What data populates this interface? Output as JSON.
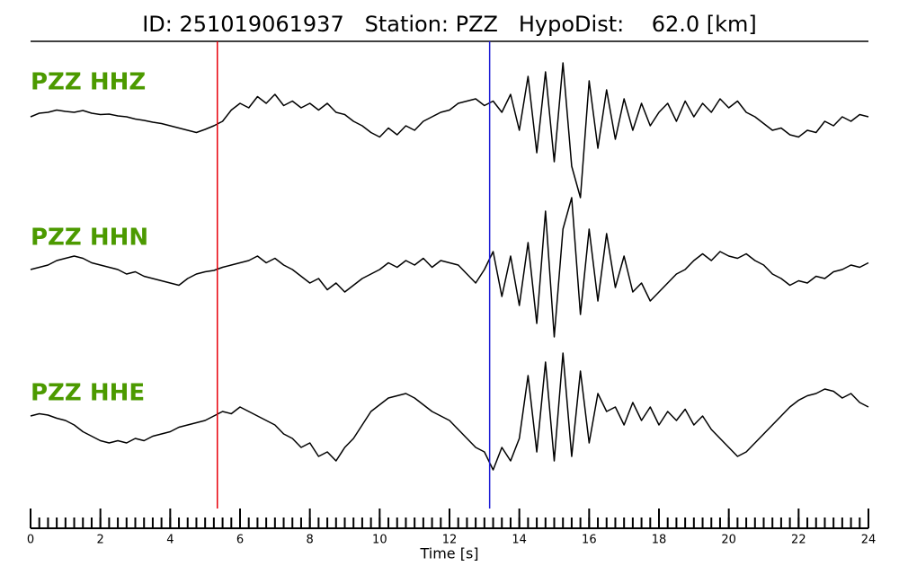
{
  "chart_data": {
    "type": "seismogram",
    "title": "ID: 251019061937   Station: PZZ   HypoDist:    62.0 [km]",
    "xlabel": "Time [s]",
    "xlim": [
      0,
      24
    ],
    "xticks": [
      0,
      2,
      4,
      6,
      8,
      10,
      12,
      14,
      16,
      18,
      20,
      22,
      24
    ],
    "xminor_ticks": [
      0,
      0.25,
      0.5,
      0.75,
      1,
      1.25,
      1.5,
      1.75,
      2,
      2.25,
      2.5,
      2.75,
      3,
      3.25,
      3.5,
      3.75,
      4,
      4.25,
      4.5,
      4.75,
      5,
      5.25,
      5.5,
      5.75,
      6,
      6.25,
      6.5,
      6.75,
      7,
      7.25,
      7.5,
      7.75,
      8,
      8.25,
      8.5,
      8.75,
      9,
      9.25,
      9.5,
      9.75,
      10,
      10.25,
      10.5,
      10.75,
      11,
      11.25,
      11.5,
      11.75,
      12,
      12.25,
      12.5,
      12.75,
      13,
      13.25,
      13.5,
      13.75,
      14,
      14.25,
      14.5,
      14.75,
      15,
      15.25,
      15.5,
      15.75,
      16,
      16.25,
      16.5,
      16.75,
      17,
      17.25,
      17.5,
      17.75,
      18,
      18.25,
      18.5,
      18.75,
      19,
      19.25,
      19.5,
      19.75,
      20,
      20.25,
      20.5,
      20.75,
      21,
      21.25,
      21.5,
      21.75,
      22,
      22.25,
      22.5,
      22.75,
      23,
      23.25,
      23.5,
      23.75,
      24
    ],
    "x": [
      0,
      0.25,
      0.5,
      0.75,
      1,
      1.25,
      1.5,
      1.75,
      2,
      2.25,
      2.5,
      2.75,
      3,
      3.25,
      3.5,
      3.75,
      4,
      4.25,
      4.5,
      4.75,
      5,
      5.25,
      5.5,
      5.75,
      6,
      6.25,
      6.5,
      6.75,
      7,
      7.25,
      7.5,
      7.75,
      8,
      8.25,
      8.5,
      8.75,
      9,
      9.25,
      9.5,
      9.75,
      10,
      10.25,
      10.5,
      10.75,
      11,
      11.25,
      11.5,
      11.75,
      12,
      12.25,
      12.5,
      12.75,
      13,
      13.25,
      13.5,
      13.75,
      14,
      14.25,
      14.5,
      14.75,
      15,
      15.25,
      15.5,
      15.75,
      16,
      16.25,
      16.5,
      16.75,
      17,
      17.25,
      17.5,
      17.75,
      18,
      18.25,
      18.5,
      18.75,
      19,
      19.25,
      19.5,
      19.75,
      20,
      20.25,
      20.5,
      20.75,
      21,
      21.25,
      21.5,
      21.75,
      22,
      22.25,
      22.5,
      22.75,
      23,
      23.25,
      23.5,
      23.75,
      24
    ],
    "label_color": "#4c9a00",
    "series": [
      {
        "name": "PZZ HHZ",
        "color": "#000000",
        "values": [
          0,
          0.08,
          0.1,
          0.15,
          0.12,
          0.1,
          0.14,
          0.08,
          0.05,
          0.06,
          0.02,
          0.0,
          -0.05,
          -0.08,
          -0.12,
          -0.15,
          -0.2,
          -0.25,
          -0.3,
          -0.35,
          -0.28,
          -0.2,
          -0.1,
          0.15,
          0.3,
          0.2,
          0.45,
          0.3,
          0.5,
          0.25,
          0.35,
          0.2,
          0.3,
          0.15,
          0.3,
          0.1,
          0.05,
          -0.1,
          -0.2,
          -0.35,
          -0.45,
          -0.25,
          -0.4,
          -0.2,
          -0.3,
          -0.1,
          0.0,
          0.1,
          0.15,
          0.3,
          0.35,
          0.4,
          0.25,
          0.35,
          0.1,
          0.5,
          -0.3,
          0.9,
          -0.8,
          1.0,
          -1.0,
          1.2,
          -1.1,
          -1.8,
          0.8,
          -0.7,
          0.6,
          -0.5,
          0.4,
          -0.3,
          0.3,
          -0.2,
          0.1,
          0.3,
          -0.1,
          0.35,
          0.0,
          0.3,
          0.1,
          0.4,
          0.2,
          0.35,
          0.1,
          0.0,
          -0.15,
          -0.3,
          -0.25,
          -0.4,
          -0.45,
          -0.3,
          -0.35,
          -0.1,
          -0.2,
          0.0,
          -0.1,
          0.05,
          0.0
        ]
      },
      {
        "name": "PZZ HHN",
        "color": "#000000",
        "values": [
          0,
          0.05,
          0.1,
          0.2,
          0.25,
          0.3,
          0.25,
          0.15,
          0.1,
          0.05,
          0.0,
          -0.1,
          -0.05,
          -0.15,
          -0.2,
          -0.25,
          -0.3,
          -0.35,
          -0.2,
          -0.1,
          -0.05,
          -0.02,
          0.05,
          0.1,
          0.15,
          0.2,
          0.3,
          0.15,
          0.25,
          0.1,
          0.0,
          -0.15,
          -0.3,
          -0.2,
          -0.45,
          -0.3,
          -0.5,
          -0.35,
          -0.2,
          -0.1,
          0.0,
          0.15,
          0.05,
          0.2,
          0.1,
          0.25,
          0.05,
          0.2,
          0.15,
          0.1,
          -0.1,
          -0.3,
          0.0,
          0.4,
          -0.6,
          0.3,
          -0.8,
          0.6,
          -1.2,
          1.3,
          -1.5,
          0.9,
          1.6,
          -1.0,
          0.9,
          -0.7,
          0.8,
          -0.4,
          0.3,
          -0.5,
          -0.3,
          -0.7,
          -0.5,
          -0.3,
          -0.1,
          0.0,
          0.2,
          0.35,
          0.2,
          0.4,
          0.3,
          0.25,
          0.35,
          0.2,
          0.1,
          -0.1,
          -0.2,
          -0.35,
          -0.25,
          -0.3,
          -0.15,
          -0.2,
          -0.05,
          0.0,
          0.1,
          0.05,
          0.15
        ]
      },
      {
        "name": "PZZ HHE",
        "color": "#000000",
        "values": [
          0.1,
          0.15,
          0.12,
          0.05,
          0.0,
          -0.1,
          -0.25,
          -0.35,
          -0.45,
          -0.5,
          -0.45,
          -0.5,
          -0.4,
          -0.45,
          -0.35,
          -0.3,
          -0.25,
          -0.15,
          -0.1,
          -0.05,
          0.0,
          0.1,
          0.2,
          0.15,
          0.3,
          0.2,
          0.1,
          0.0,
          -0.1,
          -0.3,
          -0.4,
          -0.6,
          -0.5,
          -0.8,
          -0.7,
          -0.9,
          -0.6,
          -0.4,
          -0.1,
          0.2,
          0.35,
          0.5,
          0.55,
          0.6,
          0.5,
          0.35,
          0.2,
          0.1,
          0.0,
          -0.2,
          -0.4,
          -0.6,
          -0.7,
          -1.1,
          -0.6,
          -0.9,
          -0.4,
          1.0,
          -0.7,
          1.3,
          -0.9,
          1.5,
          -0.8,
          1.1,
          -0.5,
          0.6,
          0.2,
          0.3,
          -0.1,
          0.4,
          0.0,
          0.3,
          -0.1,
          0.2,
          0.0,
          0.25,
          -0.1,
          0.1,
          -0.2,
          -0.4,
          -0.6,
          -0.8,
          -0.7,
          -0.5,
          -0.3,
          -0.1,
          0.1,
          0.3,
          0.45,
          0.55,
          0.6,
          0.7,
          0.65,
          0.5,
          0.6,
          0.4,
          0.3
        ]
      }
    ],
    "vlines": [
      {
        "x": 5.35,
        "color": "#e8000b"
      },
      {
        "x": 13.15,
        "color": "#1f1fd6"
      }
    ]
  }
}
